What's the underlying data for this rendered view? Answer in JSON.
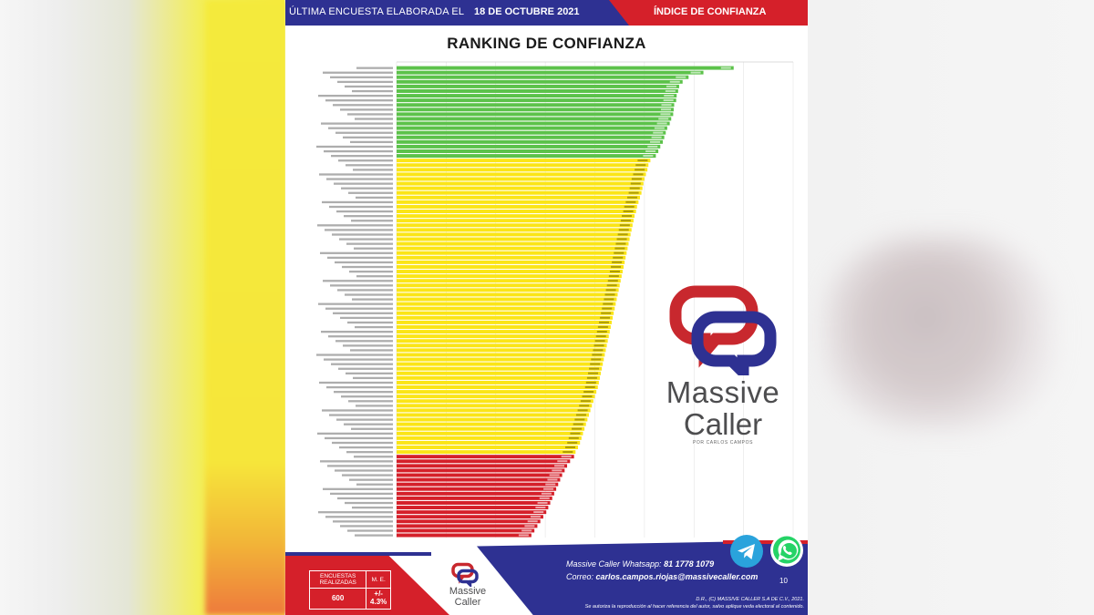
{
  "header": {
    "left_text": "ÚLTIMA ENCUESTA ELABORADA EL",
    "date": "18 DE OCTUBRE 2021",
    "right_text": "ÍNDICE DE CONFIANZA"
  },
  "colors": {
    "navy": "#2e3192",
    "red": "#d5202a",
    "green": "#5cc24a",
    "yellow": "#fbe516",
    "bar_red": "#d9161c"
  },
  "chart_data": {
    "type": "bar",
    "orientation": "horizontal",
    "title": "RANKING DE CONFIANZA",
    "xlim": [
      0,
      80
    ],
    "grid": true,
    "sorted": "descending",
    "legend": "none",
    "groups": [
      {
        "color": "green",
        "count": 20,
        "from": 68.0,
        "to": 52.3
      },
      {
        "color": "yellow",
        "count": 64,
        "from": 51.2,
        "to": 36.1
      },
      {
        "color": "red",
        "count": 18,
        "from": 35.8,
        "to": 27.2
      }
    ],
    "values": [
      68.0,
      61.9,
      58.9,
      57.7,
      57.0,
      56.8,
      56.5,
      56.4,
      56.0,
      55.9,
      55.8,
      55.4,
      55.1,
      54.6,
      54.3,
      54.0,
      53.7,
      53.2,
      52.8,
      52.3,
      51.2,
      50.8,
      50.6,
      50.3,
      50.0,
      49.8,
      49.6,
      49.4,
      49.1,
      48.8,
      48.5,
      48.3,
      48.0,
      47.8,
      47.6,
      47.4,
      47.2,
      47.0,
      46.8,
      46.6,
      46.4,
      46.2,
      46.0,
      45.8,
      45.6,
      45.4,
      45.2,
      45.0,
      44.8,
      44.6,
      44.4,
      44.2,
      44.0,
      43.8,
      43.6,
      43.4,
      43.2,
      43.0,
      42.8,
      42.6,
      42.4,
      42.2,
      42.0,
      41.8,
      41.6,
      41.4,
      41.2,
      41.0,
      40.8,
      40.6,
      40.3,
      40.0,
      39.7,
      39.4,
      39.1,
      38.8,
      38.5,
      38.2,
      37.9,
      37.6,
      37.3,
      37.0,
      36.6,
      36.1,
      35.8,
      35.0,
      34.4,
      33.9,
      33.4,
      33.0,
      32.6,
      32.2,
      31.8,
      31.4,
      31.0,
      30.6,
      30.2,
      29.6,
      29.0,
      28.4,
      27.8,
      27.2
    ]
  },
  "brand": {
    "name_line1": "Massive",
    "name_line2": "Caller",
    "tagline": "POR CARLOS CAMPOS"
  },
  "footer": {
    "surveys_label": "ENCUESTAS REALIZADAS",
    "margin_label": "M. E.",
    "surveys_value": "600",
    "margin_value": "+/- 4.3%",
    "whatsapp_label": "Massive Caller Whatsapp:",
    "whatsapp_number": "81 1778 1079",
    "email_label": "Correo:",
    "email": "carlos.campos.riojas@massivecaller.com",
    "page": "10",
    "legal_1": "D.R., (C) MASSIVE CALLER S.A DE C.V., 2021.",
    "legal_2": "Se autoriza la reproducción al hacer referencia del autor, salvo aplique veda electoral al contenido."
  }
}
